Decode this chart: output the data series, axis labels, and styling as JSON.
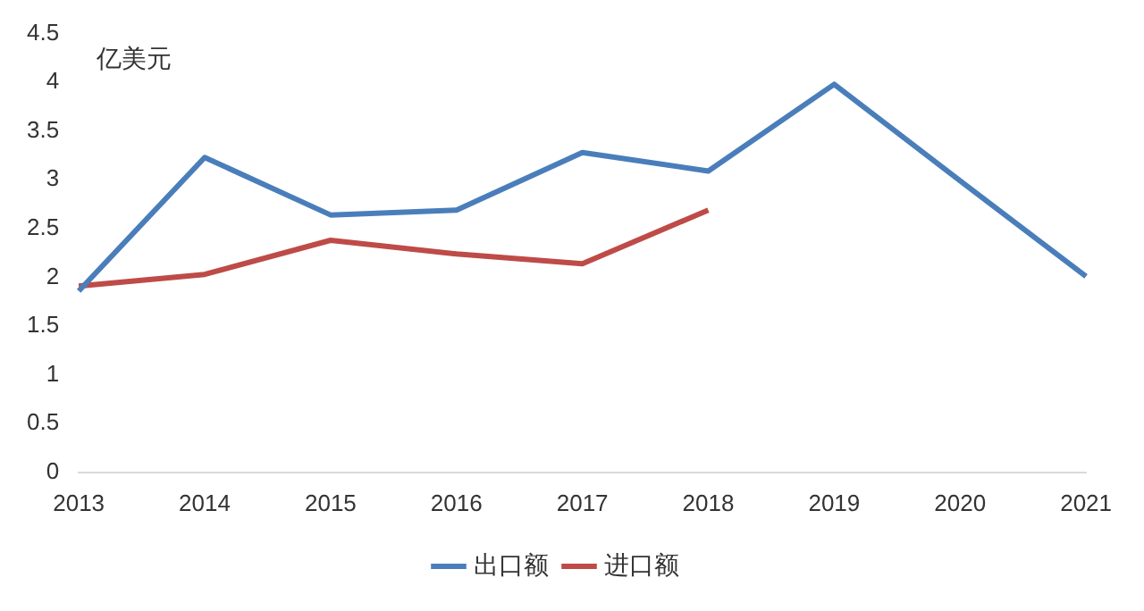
{
  "chart_data": {
    "type": "line",
    "ylabel": "亿美元",
    "categories": [
      "2013",
      "2014",
      "2015",
      "2016",
      "2017",
      "2018",
      "2019",
      "2020",
      "2021"
    ],
    "series": [
      {
        "name": "出口额",
        "color": "#4a7ebb",
        "values": [
          1.86,
          3.23,
          2.64,
          2.69,
          3.28,
          3.09,
          3.98,
          2.99,
          2.01
        ]
      },
      {
        "name": "进口额",
        "color": "#be4b48",
        "values": [
          1.91,
          2.03,
          2.38,
          2.24,
          2.14,
          2.69,
          null,
          null,
          null
        ]
      }
    ],
    "ylim": [
      0,
      4.5
    ],
    "yticks": [
      0,
      0.5,
      1,
      1.5,
      2,
      2.5,
      3,
      3.5,
      4,
      4.5
    ],
    "grid": false,
    "legend": "bottom",
    "marker": "none",
    "line_style": "solid"
  }
}
